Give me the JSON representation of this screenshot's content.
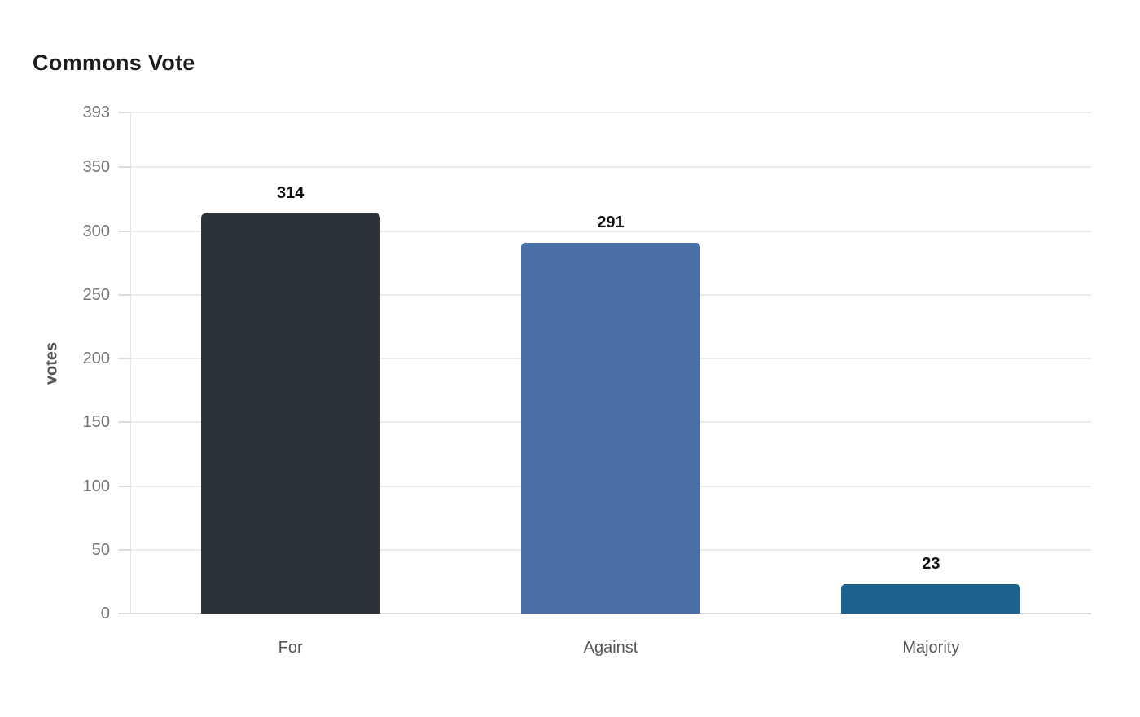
{
  "page": {
    "background": "#ffffff"
  },
  "chart_data": {
    "type": "bar",
    "title": "Commons Vote",
    "categories": [
      "For",
      "Against",
      "Majority"
    ],
    "values": [
      314,
      291,
      23
    ],
    "value_labels": [
      "314",
      "291",
      "23"
    ],
    "bar_colors": [
      "#2b3238",
      "#4a70a8",
      "#1d6390"
    ],
    "xlabel": "",
    "ylabel": "votes",
    "ylim": [
      0,
      393
    ],
    "yticks": [
      0,
      50,
      100,
      150,
      200,
      250,
      300,
      350,
      393
    ],
    "grid": true,
    "legend": "none",
    "colors": {
      "title_text": "#1c1c1c",
      "tick_text": "#757575",
      "category_text": "#555555",
      "value_text": "#111111",
      "gridline": "#ececec",
      "axis_line": "#d9d9d9"
    }
  }
}
